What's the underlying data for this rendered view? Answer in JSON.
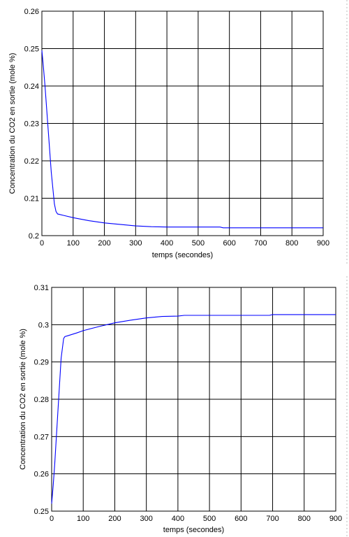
{
  "chart_data": [
    {
      "type": "line",
      "title": "",
      "xlabel": "temps (secondes)",
      "ylabel": "Concentration du CO2 en sortie (mole %)",
      "xlim": [
        0,
        900
      ],
      "ylim": [
        0.2,
        0.26
      ],
      "xticks": [
        "0",
        "100",
        "200",
        "300",
        "400",
        "500",
        "600",
        "700",
        "800",
        "900"
      ],
      "yticks": [
        "0.2",
        "0.21",
        "0.22",
        "0.23",
        "0.24",
        "0.25",
        "0.26"
      ],
      "grid": true,
      "series": [
        {
          "color": "#0000ff",
          "x": [
            0,
            5,
            10,
            20,
            30,
            40,
            45,
            50,
            70,
            100,
            150,
            200,
            250,
            300,
            350,
            400,
            500,
            570,
            580,
            700,
            800,
            900
          ],
          "y": [
            0.2495,
            0.245,
            0.24,
            0.2285,
            0.217,
            0.2085,
            0.2065,
            0.2058,
            0.2054,
            0.2048,
            0.204,
            0.2034,
            0.203,
            0.2026,
            0.2024,
            0.2023,
            0.2023,
            0.2023,
            0.2021,
            0.2021,
            0.2021,
            0.2021
          ]
        }
      ]
    },
    {
      "type": "line",
      "title": "",
      "xlabel": "temps (secondes)",
      "ylabel": "Concentration du CO2 en sortie (mole %)",
      "xlim": [
        0,
        900
      ],
      "ylim": [
        0.25,
        0.31
      ],
      "xticks": [
        "0",
        "100",
        "200",
        "300",
        "400",
        "500",
        "600",
        "700",
        "800",
        "900"
      ],
      "yticks": [
        "0.25",
        "0.26",
        "0.27",
        "0.28",
        "0.29",
        "0.3",
        "0.31"
      ],
      "grid": true,
      "series": [
        {
          "color": "#0000ff",
          "x": [
            0,
            5,
            10,
            20,
            30,
            38,
            42,
            50,
            80,
            100,
            150,
            200,
            250,
            300,
            350,
            400,
            420,
            500,
            600,
            690,
            700,
            800,
            900
          ],
          "y": [
            0.252,
            0.257,
            0.263,
            0.277,
            0.291,
            0.2963,
            0.2968,
            0.297,
            0.2978,
            0.2984,
            0.2995,
            0.3005,
            0.3012,
            0.3018,
            0.3022,
            0.3023,
            0.3025,
            0.3025,
            0.3025,
            0.3025,
            0.3027,
            0.3027,
            0.3027
          ]
        }
      ]
    }
  ]
}
